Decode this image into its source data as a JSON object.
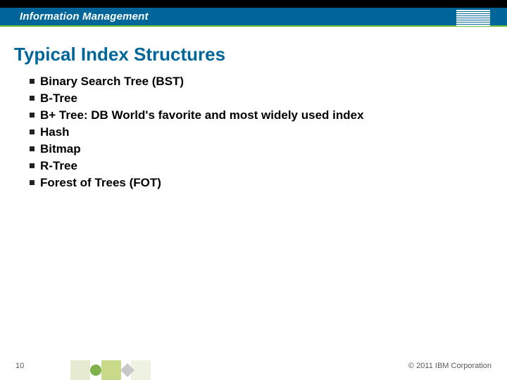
{
  "header": {
    "brand_title": "Information Management",
    "brand_title_fontsize": 15,
    "bar_black_color": "#000000",
    "bar_main_color": "#006699",
    "bar_underline_color": "#6bbf3a",
    "logo_name": "ibm-logo",
    "logo_stripe_count": 8
  },
  "slide": {
    "title": "Typical Index Structures",
    "title_color": "#006699",
    "title_fontsize": 26,
    "bullet_marker_color": "#222222",
    "bullet_text_color": "#000000",
    "bullet_fontsize": 17,
    "bullets": [
      "Binary Search Tree (BST)",
      "B-Tree",
      "B+ Tree: DB World's favorite and most widely used index",
      "Hash",
      "Bitmap",
      "R-Tree",
      "Forest of Trees (FOT)"
    ]
  },
  "footer": {
    "page_number": "10",
    "copyright": "© 2011 IBM Corporation",
    "text_color": "#5a5a5a",
    "deco": {
      "square1_color": "#e6ead0",
      "circle_color": "#7fb24a",
      "square2_color": "#c9d98a",
      "diamond_color": "#c8c8c8",
      "square3_color": "#eef2e0"
    }
  },
  "background_color": "#ffffff"
}
